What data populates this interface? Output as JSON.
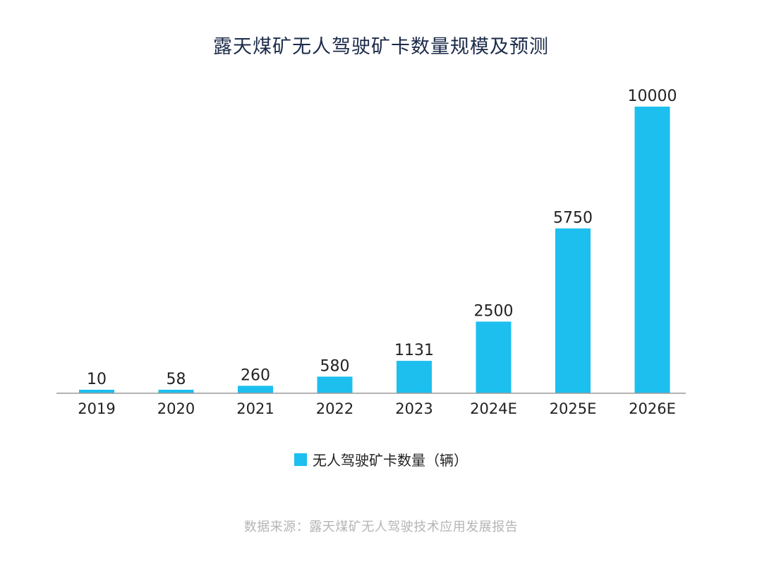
{
  "chart_data": {
    "type": "bar",
    "title": "露天煤矿无人驾驶矿卡数量规模及预测",
    "categories": [
      "2019",
      "2020",
      "2021",
      "2022",
      "2023",
      "2024E",
      "2025E",
      "2026E"
    ],
    "series": [
      {
        "name": "无人驾驶矿卡数量（辆）",
        "values": [
          10,
          58,
          260,
          580,
          1131,
          2500,
          5750,
          10000
        ]
      }
    ],
    "xlabel": "",
    "ylabel": "",
    "ylim": [
      0,
      10000
    ],
    "grid": false,
    "legend": "bottom",
    "data_labels": true
  },
  "colors": {
    "bar": "#1dbfee",
    "axis": "#9a9a9a"
  },
  "source": "数据来源：露天煤矿无人驾驶技术应用发展报告"
}
